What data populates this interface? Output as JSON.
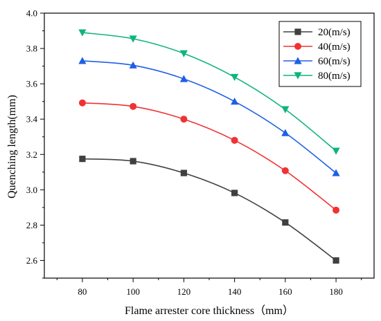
{
  "chart_data": {
    "type": "line",
    "xlabel": "Flame arrester core thickness（mm）",
    "ylabel": "Quenching length(mm)",
    "x": [
      80,
      100,
      120,
      140,
      160,
      180
    ],
    "xlim": [
      65,
      195
    ],
    "ylim": [
      2.5,
      4.0
    ],
    "x_ticks": [
      80,
      100,
      120,
      140,
      160,
      180
    ],
    "y_ticks": [
      2.6,
      2.8,
      3.0,
      3.2,
      3.4,
      3.6,
      3.8,
      4.0
    ],
    "y_tick_labels": [
      "2.6",
      "2.8",
      "3.0",
      "3.2",
      "3.4",
      "3.6",
      "3.8",
      "4.0"
    ],
    "grid": false,
    "legend_position": "top-right",
    "series": [
      {
        "name": "20(m/s)",
        "values": [
          3.175,
          3.162,
          3.095,
          2.982,
          2.815,
          2.6
        ],
        "color": "#404040",
        "marker": "square"
      },
      {
        "name": "40(m/s)",
        "values": [
          3.492,
          3.472,
          3.4,
          3.28,
          3.108,
          2.885
        ],
        "color": "#f03232",
        "marker": "circle"
      },
      {
        "name": "60(m/s)",
        "values": [
          3.73,
          3.705,
          3.628,
          3.5,
          3.322,
          3.095
        ],
        "color": "#1e5fe6",
        "marker": "triangle-up"
      },
      {
        "name": "80(m/s)",
        "values": [
          3.89,
          3.855,
          3.772,
          3.638,
          3.455,
          3.22
        ],
        "color": "#0fb47d",
        "marker": "triangle-down"
      }
    ]
  }
}
